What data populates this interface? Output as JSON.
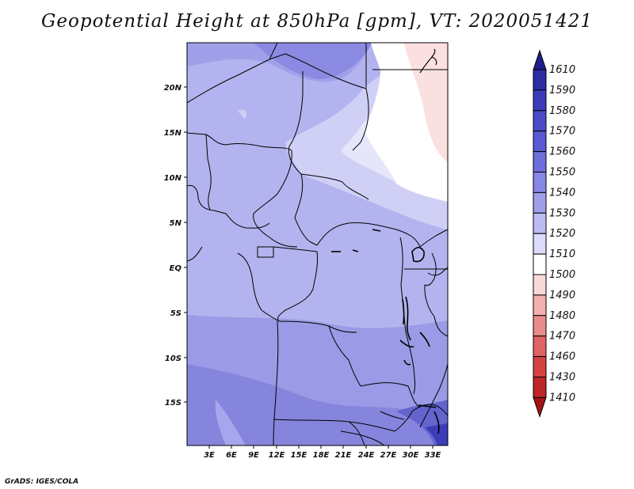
{
  "title": "Geopotential Height at 850hPa [gpm], VT: 2020051421",
  "footer": "GrADS: IGES/COLA",
  "map": {
    "lat_ticks": [
      "20N",
      "15N",
      "10N",
      "5N",
      "EQ",
      "5S",
      "10S",
      "15S"
    ],
    "lon_ticks": [
      "3E",
      "6E",
      "9E",
      "12E",
      "15E",
      "18E",
      "21E",
      "24E",
      "27E",
      "30E",
      "33E"
    ]
  },
  "colorbar": {
    "labels": [
      "1610",
      "1590",
      "1580",
      "1570",
      "1560",
      "1550",
      "1540",
      "1530",
      "1520",
      "1510",
      "1500",
      "1490",
      "1480",
      "1470",
      "1460",
      "1430",
      "1410"
    ],
    "colors": [
      "#1e1e8c",
      "#2d2da6",
      "#3c3cba",
      "#4b4bc9",
      "#5a5ad4",
      "#6e6edc",
      "#8787e4",
      "#a0a0ea",
      "#bcbcf2",
      "#dcdcfa",
      "#ffffff",
      "#fbd8d8",
      "#f4b0b0",
      "#ea8c8c",
      "#e06464",
      "#d44242",
      "#be2626",
      "#a51414"
    ]
  }
}
